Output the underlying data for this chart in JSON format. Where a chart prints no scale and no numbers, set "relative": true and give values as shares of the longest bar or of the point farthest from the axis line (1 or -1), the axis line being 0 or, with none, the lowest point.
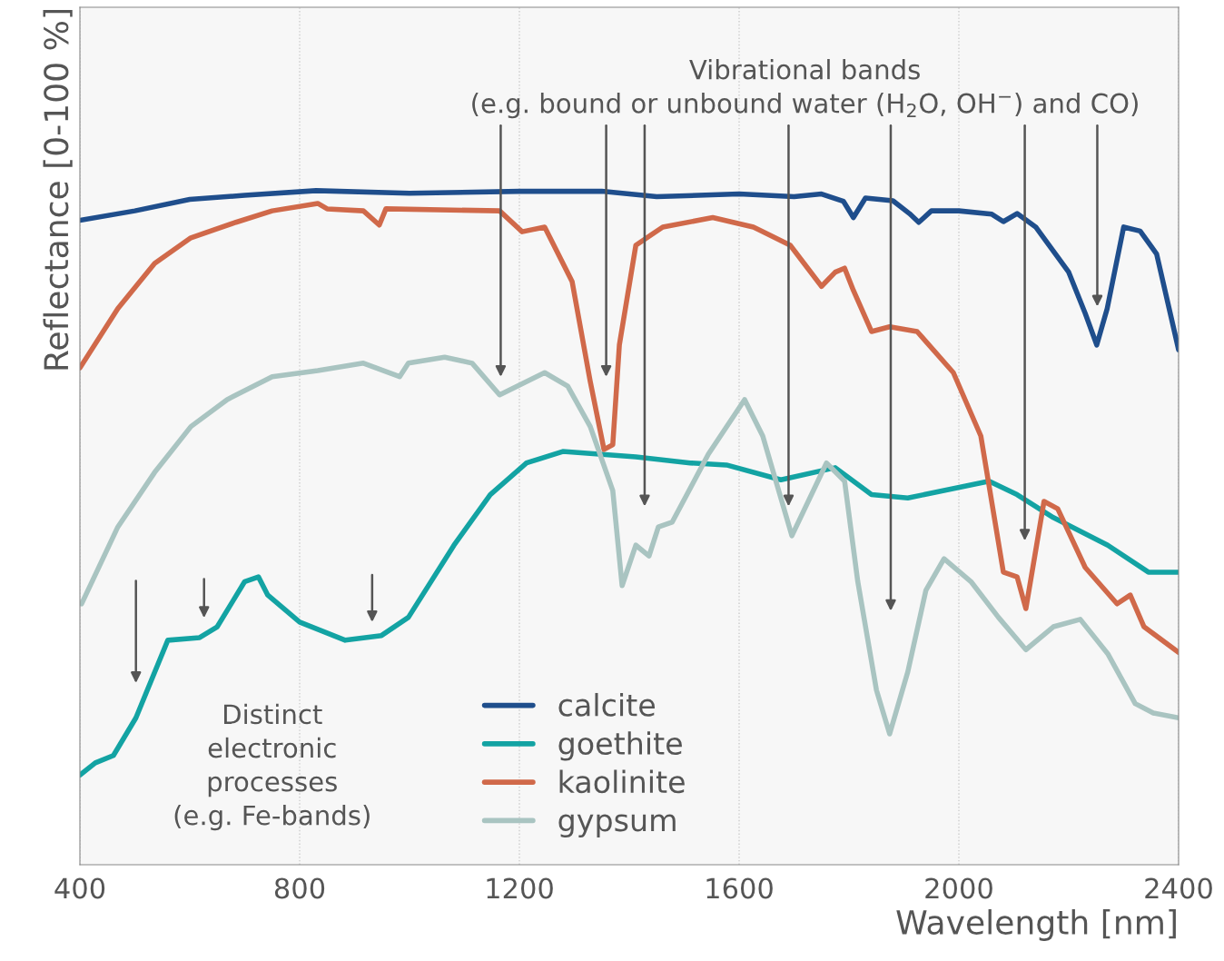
{
  "chart_data": {
    "type": "line",
    "relative": true,
    "xlabel": "Wavelength [nm]",
    "ylabel": "Reflectance [0-100 %]",
    "xlim": [
      400,
      2400
    ],
    "xticks": [
      400,
      800,
      1200,
      1600,
      2000,
      2400
    ],
    "grid": "x",
    "legend": "bottom",
    "line_style": "solid",
    "marker": "none",
    "series": [
      {
        "name": "calcite",
        "color": "#1f4e8c",
        "x": [
          400,
          500,
          600,
          700,
          830,
          1000,
          1200,
          1350,
          1450,
          1600,
          1700,
          1750,
          1790,
          1808,
          1830,
          1880,
          1910,
          1927,
          1950,
          2000,
          2060,
          2081,
          2106,
          2140,
          2200,
          2230,
          2251,
          2270,
          2300,
          2330,
          2360,
          2400
        ],
        "values": [
          0.956,
          0.97,
          0.987,
          0.993,
          1.0,
          0.996,
          0.999,
          0.999,
          0.991,
          0.995,
          0.991,
          0.995,
          0.984,
          0.96,
          0.989,
          0.985,
          0.966,
          0.953,
          0.97,
          0.97,
          0.965,
          0.954,
          0.966,
          0.946,
          0.879,
          0.818,
          0.771,
          0.825,
          0.946,
          0.94,
          0.906,
          0.764
        ]
      },
      {
        "name": "goethite",
        "color": "#13a3a3",
        "x": [
          400,
          428,
          461,
          502,
          560,
          618,
          650,
          700,
          725,
          742,
          800,
          883,
          949,
          998,
          1081,
          1147,
          1213,
          1279,
          1412,
          1511,
          1577,
          1676,
          1775,
          1841,
          1907,
          2055,
          2106,
          2172,
          2271,
          2345,
          2400
        ],
        "values": [
          0.133,
          0.151,
          0.162,
          0.218,
          0.333,
          0.337,
          0.353,
          0.42,
          0.427,
          0.4,
          0.36,
          0.333,
          0.34,
          0.367,
          0.474,
          0.549,
          0.596,
          0.613,
          0.605,
          0.596,
          0.593,
          0.571,
          0.589,
          0.549,
          0.544,
          0.569,
          0.549,
          0.515,
          0.474,
          0.434,
          0.434
        ]
      },
      {
        "name": "kaolinite",
        "color": "#d0694a",
        "x": [
          400,
          469,
          536,
          602,
          684,
          750,
          833,
          850,
          916,
          945,
          957,
          1164,
          1205,
          1246,
          1296,
          1329,
          1354,
          1370,
          1382,
          1412,
          1461,
          1552,
          1626,
          1693,
          1750,
          1775,
          1792,
          1808,
          1841,
          1874,
          1924,
          1990,
          2040,
          2081,
          2106,
          2122,
          2155,
          2180,
          2230,
          2288,
          2312,
          2337,
          2400
        ],
        "values": [
          0.737,
          0.825,
          0.892,
          0.93,
          0.953,
          0.97,
          0.981,
          0.973,
          0.97,
          0.949,
          0.973,
          0.97,
          0.939,
          0.946,
          0.865,
          0.717,
          0.616,
          0.623,
          0.771,
          0.919,
          0.946,
          0.96,
          0.946,
          0.919,
          0.858,
          0.879,
          0.885,
          0.852,
          0.791,
          0.798,
          0.791,
          0.73,
          0.636,
          0.434,
          0.427,
          0.38,
          0.539,
          0.528,
          0.441,
          0.387,
          0.4,
          0.353,
          0.315
        ]
      },
      {
        "name": "gypsum",
        "color": "#a9c4c1",
        "x": [
          403,
          469,
          536,
          602,
          668,
          750,
          833,
          916,
          982,
          998,
          1064,
          1114,
          1164,
          1246,
          1288,
          1329,
          1370,
          1387,
          1412,
          1436,
          1453,
          1478,
          1544,
          1610,
          1643,
          1696,
          1759,
          1792,
          1816,
          1850,
          1874,
          1907,
          1940,
          1973,
          2022,
          2072,
          2122,
          2172,
          2221,
          2271,
          2321,
          2354,
          2400
        ],
        "values": [
          0.387,
          0.501,
          0.582,
          0.65,
          0.69,
          0.724,
          0.733,
          0.744,
          0.724,
          0.744,
          0.753,
          0.744,
          0.697,
          0.73,
          0.71,
          0.65,
          0.555,
          0.414,
          0.474,
          0.458,
          0.501,
          0.508,
          0.609,
          0.69,
          0.636,
          0.488,
          0.596,
          0.569,
          0.42,
          0.259,
          0.194,
          0.286,
          0.407,
          0.454,
          0.42,
          0.367,
          0.319,
          0.353,
          0.364,
          0.313,
          0.239,
          0.225,
          0.218
        ]
      }
    ],
    "annotations": [
      "Vibrational bands\n(e.g. bound or unbound water (H$_{2}$O, OH$^{−}$) and CO)",
      "Distinct\nelectronic\nprocesses\n(e.g. Fe-bands)"
    ]
  }
}
